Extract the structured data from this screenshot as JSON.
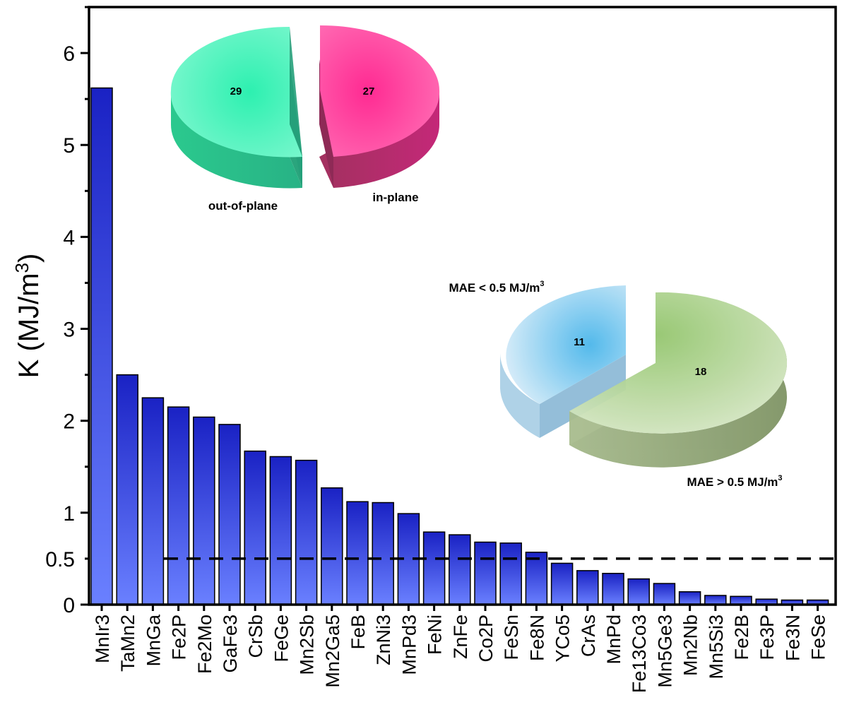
{
  "chart_data": [
    {
      "type": "bar",
      "title": "",
      "xlabel": "",
      "ylabel": "K (MJ/m3)",
      "ylabel_parts": {
        "main": "K (MJ/m",
        "sup": "3",
        "end": ")"
      },
      "ylim": [
        0,
        6.5
      ],
      "yticks": [
        0,
        1,
        2,
        3,
        4,
        5,
        6
      ],
      "ytick_labels": [
        "0",
        "1",
        "2",
        "3",
        "4",
        "5",
        "6"
      ],
      "reference_line": {
        "value": 0.5,
        "label": "0.5",
        "style": "dashed"
      },
      "categories": [
        "MnIr3",
        "TaMn2",
        "MnGa",
        "Fe2P",
        "Fe2Mo",
        "GaFe3",
        "CrSb",
        "FeGe",
        "Mn2Sb",
        "Mn2Ga5",
        "FeB",
        "ZnNi3",
        "MnPd3",
        "FeNi",
        "ZnFe",
        "Co2P",
        "FeSn",
        "Fe8N",
        "YCo5",
        "CrAs",
        "MnPd",
        "Fe13Co3",
        "Mn5Ge3",
        "Mn2Nb",
        "Mn5Si3",
        "Fe2B",
        "Fe3P",
        "Fe3N",
        "FeSe"
      ],
      "values": [
        5.62,
        2.5,
        2.25,
        2.15,
        2.04,
        1.96,
        1.67,
        1.61,
        1.57,
        1.27,
        1.12,
        1.11,
        0.99,
        0.79,
        0.76,
        0.68,
        0.67,
        0.57,
        0.45,
        0.37,
        0.34,
        0.28,
        0.23,
        0.14,
        0.1,
        0.09,
        0.06,
        0.05,
        0.05
      ]
    },
    {
      "type": "pie",
      "style": "3d-exploded",
      "slices": [
        {
          "label": "out-of-plane",
          "value": 29,
          "color": "#2de8ae"
        },
        {
          "label": "in-plane",
          "value": 27,
          "color": "#ff3399"
        }
      ]
    },
    {
      "type": "pie",
      "style": "3d-exploded",
      "slices": [
        {
          "label": "MAE < 0.5 MJ/m3",
          "label_main": "MAE < 0.5 MJ/m",
          "label_sup": "3",
          "value": 11,
          "color": "#8ccbee"
        },
        {
          "label": "MAE > 0.5 MJ/m3",
          "label_main": "MAE > 0.5 MJ/m",
          "label_sup": "3",
          "value": 18,
          "color": "#a6c98c"
        }
      ]
    }
  ]
}
